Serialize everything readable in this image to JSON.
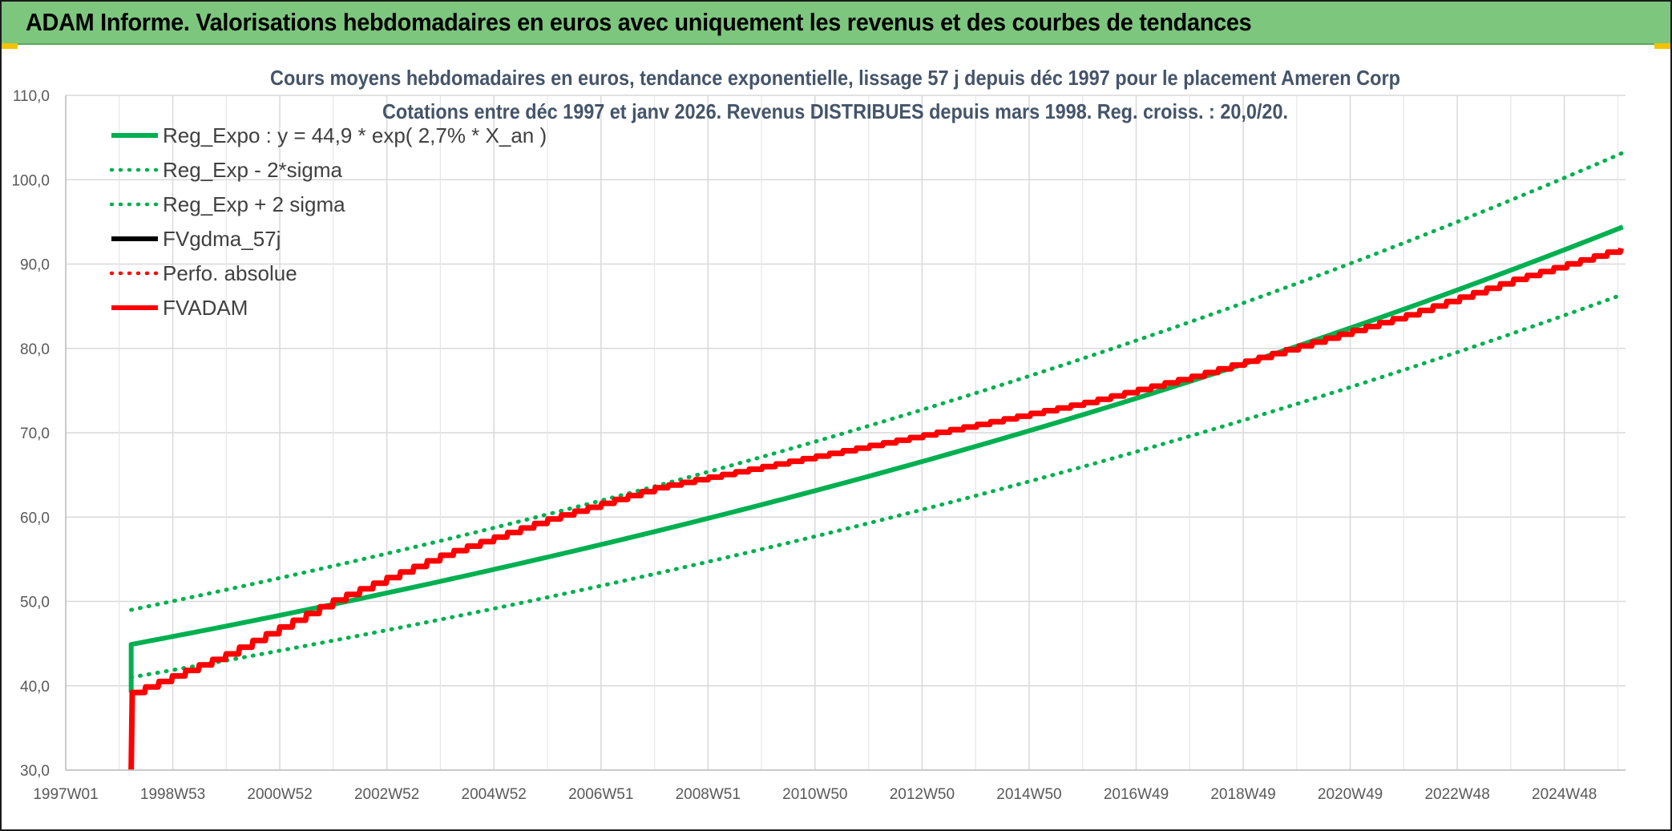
{
  "banner": {
    "title": "ADAM Informe. Valorisations hebdomadaires en euros avec uniquement les revenus et des courbes de tendances"
  },
  "colors": {
    "green": "#00b050",
    "red": "#ff0000",
    "black": "#000000",
    "banner_bg": "#7dc67e"
  },
  "chart_data": {
    "type": "line",
    "title": "Cours moyens hebdomadaires en euros, tendance exponentielle, lissage 57 j depuis déc 1997 pour le placement Ameren Corp",
    "subtitle": "Cotations entre déc 1997 et janv 2026. Revenus DISTRIBUES depuis mars 1998. Reg. croiss. : 20,0/20.",
    "xlabel": "",
    "ylabel": "",
    "ylim": [
      30,
      110
    ],
    "yticks": [
      "30,0",
      "40,0",
      "50,0",
      "60,0",
      "70,0",
      "80,0",
      "90,0",
      "100,0",
      "110,0"
    ],
    "x_tick_labels": [
      "1997W01",
      "1998W53",
      "2000W52",
      "2002W52",
      "2004W52",
      "2006W51",
      "2008W51",
      "2010W50",
      "2012W50",
      "2014W50",
      "2016W49",
      "2018W49",
      "2020W49",
      "2022W48",
      "2024W48"
    ],
    "x_range": [
      "1997W01",
      "2026W04"
    ],
    "grid": true,
    "legend_position": "top-left",
    "series": [
      {
        "name": "Reg_Expo : y = 44,9 * exp( 2,7% *  X_an )",
        "color": "#00b050",
        "style": "solid",
        "x": [
          1998.22,
          2002.0,
          2006.0,
          2010.0,
          2014.0,
          2018.0,
          2022.0,
          2026.06
        ],
        "y": [
          44.9,
          49.9,
          55.8,
          62.4,
          69.8,
          78.1,
          87.3,
          94.5
        ]
      },
      {
        "name": "Reg_Exp - 2*sigma",
        "color": "#00b050",
        "style": "dotted",
        "x": [
          1998.22,
          2002.0,
          2006.0,
          2010.0,
          2014.0,
          2018.0,
          2022.0,
          2026.06
        ],
        "y": [
          41.0,
          45.6,
          51.0,
          57.1,
          63.9,
          71.5,
          79.9,
          86.5
        ]
      },
      {
        "name": "Reg_Exp + 2 sigma",
        "color": "#00b050",
        "style": "dotted",
        "x": [
          1998.22,
          2002.0,
          2006.0,
          2010.0,
          2014.0,
          2018.0,
          2022.0,
          2026.06
        ],
        "y": [
          49.0,
          54.5,
          61.0,
          68.2,
          76.3,
          85.3,
          95.4,
          103.3
        ]
      },
      {
        "name": "FVgdma_57j",
        "color": "#000000",
        "style": "solid",
        "x": [],
        "y": []
      },
      {
        "name": "Perfo. absolue",
        "color": "#ff0000",
        "style": "dotted",
        "x": [],
        "y": []
      },
      {
        "name": "FVADAM",
        "color": "#ff0000",
        "style": "solid",
        "x": [
          1998.22,
          1998.24,
          2000.0,
          2002.0,
          2004.0,
          2006.0,
          2008.0,
          2010.0,
          2012.0,
          2014.0,
          2016.0,
          2018.0,
          2020.0,
          2022.0,
          2024.0,
          2026.06
        ],
        "y": [
          30.0,
          39.2,
          43.8,
          50.2,
          55.5,
          59.8,
          63.5,
          66.0,
          68.5,
          71.0,
          73.6,
          76.7,
          80.3,
          84.0,
          88.2,
          92.0
        ]
      }
    ]
  }
}
